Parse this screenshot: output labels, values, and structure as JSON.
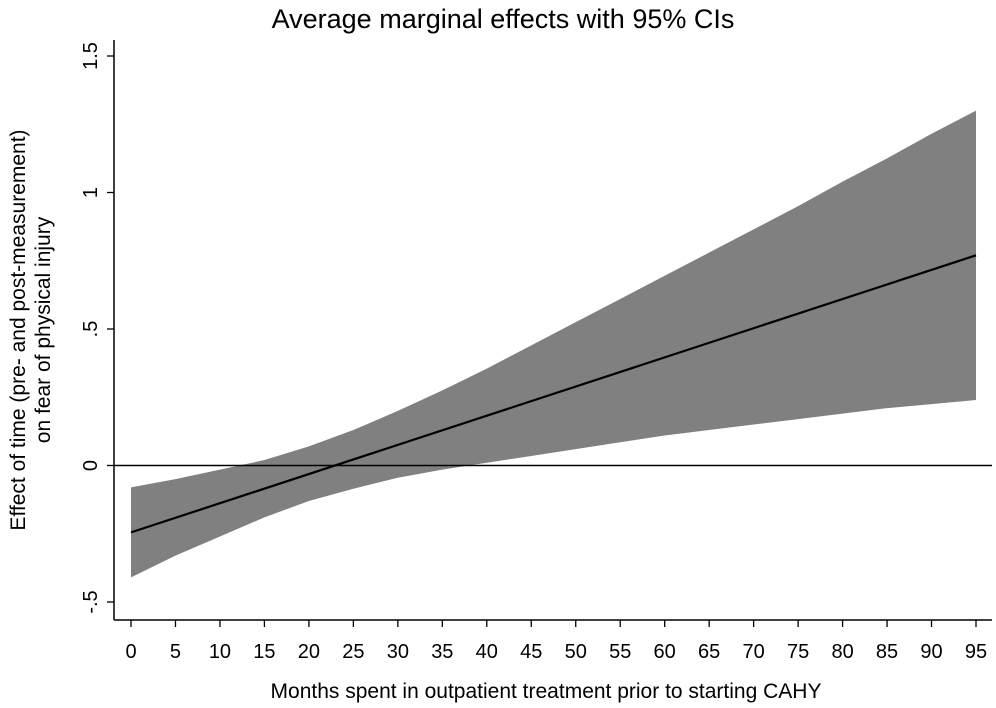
{
  "chart_data": {
    "type": "line",
    "title": "Average marginal effects with 95% CIs",
    "xlabel": "Months spent in outpatient treatment prior to starting CAHY",
    "ylabel_lines": [
      "Effect of time (pre- and post-measurement)",
      "on fear of physical injury"
    ],
    "xlim": [
      0,
      95
    ],
    "ylim": [
      -0.5,
      1.5
    ],
    "x_ticks": [
      0,
      5,
      10,
      15,
      20,
      25,
      30,
      35,
      40,
      45,
      50,
      55,
      60,
      65,
      70,
      75,
      80,
      85,
      90,
      95
    ],
    "x_tick_labels": [
      "0",
      "5",
      "10",
      "15",
      "20",
      "25",
      "30",
      "35",
      "40",
      "45",
      "50",
      "55",
      "60",
      "65",
      "70",
      "75",
      "80",
      "85",
      "90",
      "95"
    ],
    "y_ticks": [
      -0.5,
      0,
      0.5,
      1,
      1.5
    ],
    "y_tick_labels": [
      "-.5",
      "0",
      ".5",
      "1",
      "1.5"
    ],
    "reference_line": 0,
    "series": [
      {
        "name": "Average marginal effect",
        "x": [
          0,
          95
        ],
        "values": [
          -0.245,
          0.77
        ]
      },
      {
        "name": "Lower 95% CI",
        "x": [
          0,
          5,
          10,
          15,
          20,
          25,
          30,
          35,
          40,
          45,
          50,
          55,
          60,
          65,
          70,
          75,
          80,
          85,
          90,
          95
        ],
        "values": [
          -0.41,
          -0.33,
          -0.26,
          -0.19,
          -0.13,
          -0.085,
          -0.045,
          -0.015,
          0.01,
          0.035,
          0.06,
          0.085,
          0.11,
          0.13,
          0.15,
          0.17,
          0.19,
          0.21,
          0.225,
          0.24
        ]
      },
      {
        "name": "Upper 95% CI",
        "x": [
          0,
          5,
          10,
          15,
          20,
          25,
          30,
          35,
          40,
          45,
          50,
          55,
          60,
          65,
          70,
          75,
          80,
          85,
          90,
          95
        ],
        "values": [
          -0.08,
          -0.05,
          -0.015,
          0.02,
          0.07,
          0.13,
          0.2,
          0.275,
          0.355,
          0.44,
          0.525,
          0.61,
          0.695,
          0.78,
          0.865,
          0.95,
          1.04,
          1.125,
          1.215,
          1.3
        ]
      }
    ],
    "colors": {
      "ci_band": "#808080",
      "line": "#000000",
      "axis": "#000000",
      "background": "#ffffff"
    },
    "grid": false
  }
}
